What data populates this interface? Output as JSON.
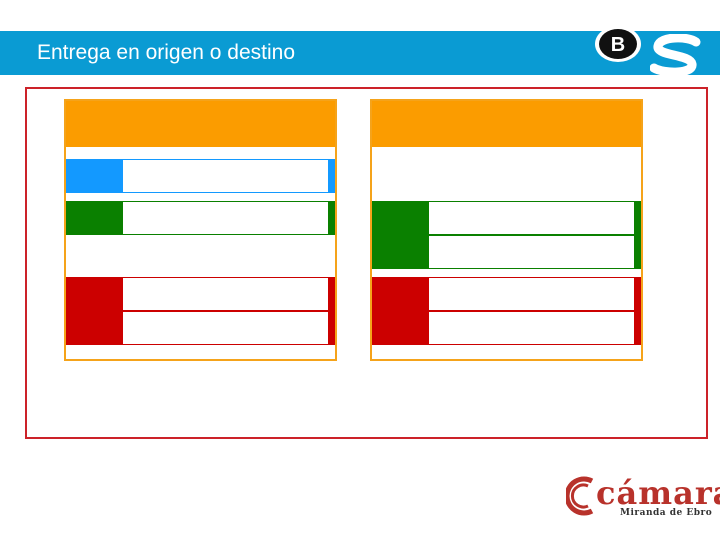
{
  "header": {
    "title": "Entrega en origen o destino"
  },
  "logos": {
    "top_right": [
      "B",
      "S"
    ],
    "camara_name": "cámara",
    "camara_subtitle": "Miranda de Ebro"
  },
  "colors": {
    "header_blue": "#0a9bd3",
    "panel_header_orange": "#fb9c00",
    "frame_red": "#cc2229",
    "blue": "#1399ff",
    "green": "#0a8000",
    "red": "#cc0000"
  },
  "panels": [
    {
      "header": "",
      "rows": [
        {
          "color": "blue",
          "text": ""
        },
        {
          "color": "green",
          "text": ""
        },
        {
          "color": "red",
          "text": ""
        },
        {
          "color": "red",
          "text": ""
        }
      ]
    },
    {
      "header": "",
      "rows": [
        {
          "color": "green",
          "text": ""
        },
        {
          "color": "green",
          "text": ""
        },
        {
          "color": "red",
          "text": ""
        },
        {
          "color": "red",
          "text": ""
        }
      ]
    }
  ]
}
